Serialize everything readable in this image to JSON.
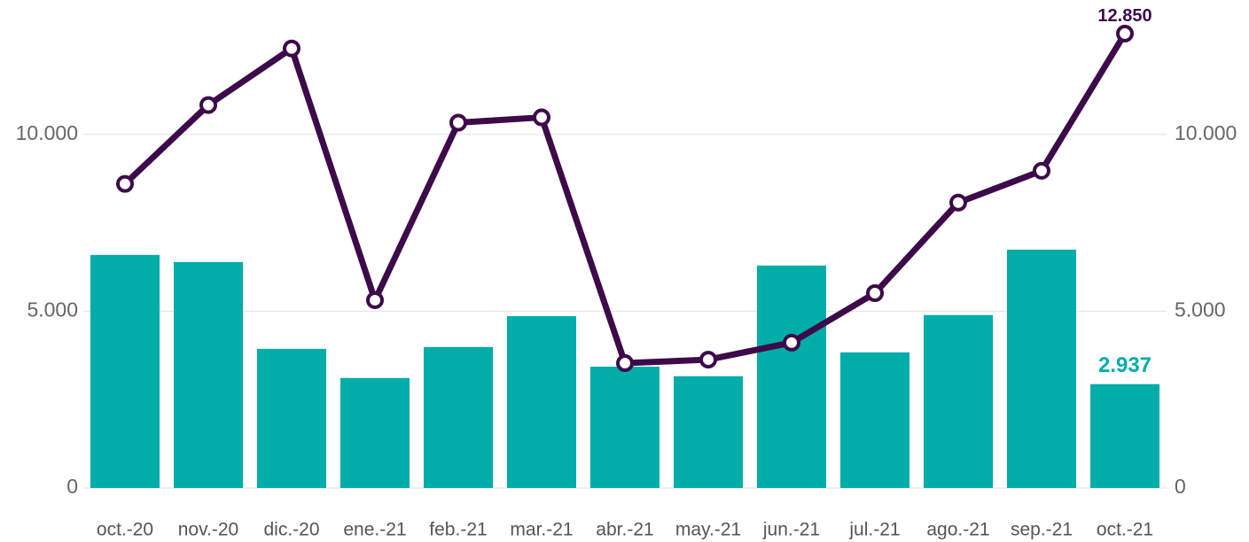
{
  "chart_data": {
    "type": "bar-line",
    "categories": [
      "oct.-20",
      "nov.-20",
      "dic.-20",
      "ene.-21",
      "feb.-21",
      "mar.-21",
      "abr.-21",
      "may.-21",
      "jun.-21",
      "jul.-21",
      "ago.-21",
      "sep.-21",
      "oct.-21"
    ],
    "series": [
      {
        "type": "bar",
        "color": "#00ada9",
        "values": [
          6590,
          6390,
          3935,
          3110,
          3985,
          4860,
          3430,
          3160,
          6290,
          3835,
          4890,
          6740,
          2937
        ],
        "value_labels": [
          null,
          null,
          null,
          null,
          null,
          null,
          null,
          null,
          null,
          null,
          null,
          null,
          "2.937"
        ]
      },
      {
        "type": "line",
        "axis": "y2",
        "color": "#3d0a4a",
        "values": [
          8600,
          10830,
          12430,
          5310,
          10330,
          10480,
          3530,
          3630,
          4110,
          5510,
          8070,
          8970,
          12850
        ],
        "value_labels": [
          null,
          null,
          null,
          null,
          null,
          null,
          null,
          null,
          null,
          null,
          null,
          null,
          "12.850"
        ]
      }
    ],
    "ylim": [
      0,
      13800
    ],
    "yticks": [
      0,
      {
        "value": 5000,
        "label": "5.000"
      },
      {
        "value": 10000,
        "label": "10.000"
      }
    ],
    "y2lim": [
      0,
      13800
    ],
    "y2ticks": [
      0,
      {
        "value": 5000,
        "label": "5.000"
      },
      {
        "value": 10000,
        "label": "10.000"
      }
    ],
    "grid": true
  }
}
